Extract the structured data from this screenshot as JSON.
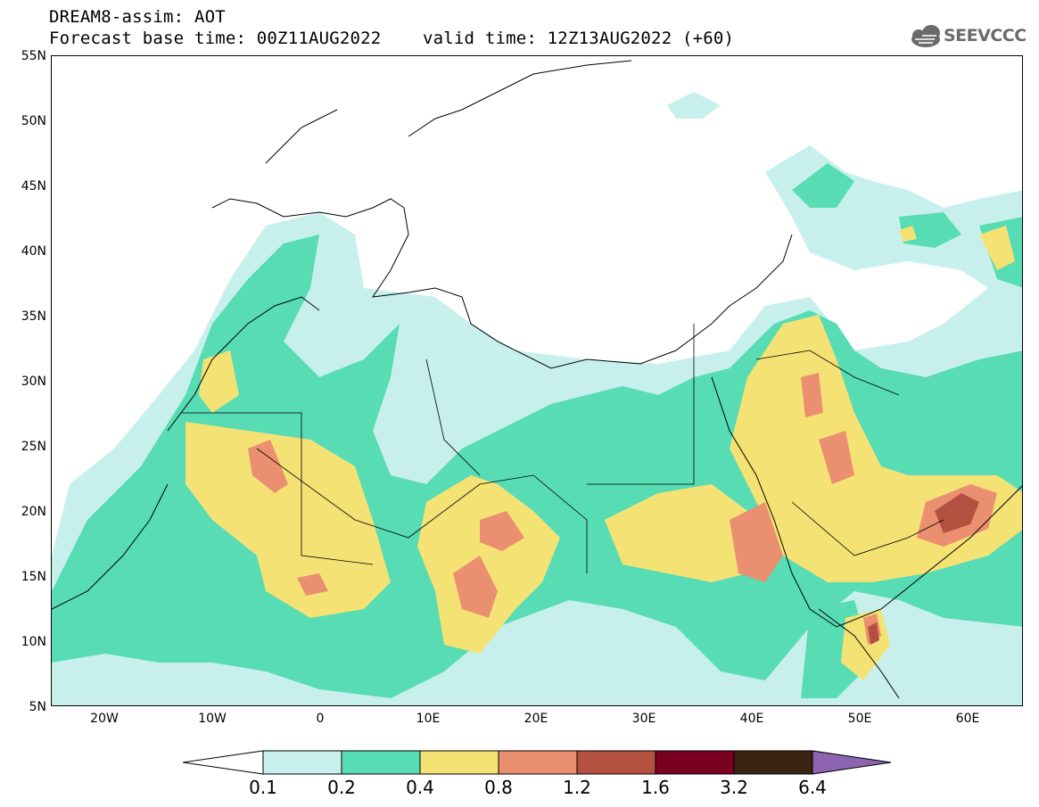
{
  "header": {
    "title_line1": "DREAM8-assim: AOT",
    "title_line2": "Forecast base time: 00Z11AUG2022    valid time: 12Z13AUG2022 (+60)",
    "logo_text": "SEEVCCC"
  },
  "axes": {
    "lat_labels": [
      "55N",
      "50N",
      "45N",
      "40N",
      "35N",
      "30N",
      "25N",
      "20N",
      "15N",
      "10N",
      "5N"
    ],
    "lon_labels": [
      "20W",
      "10W",
      "0",
      "10E",
      "20E",
      "30E",
      "40E",
      "50E",
      "60E"
    ]
  },
  "colorbar": {
    "labels": [
      "0.1",
      "0.2",
      "0.4",
      "0.8",
      "1.2",
      "1.6",
      "3.2",
      "6.4"
    ],
    "colors": [
      "#ffffff",
      "#c7f0ec",
      "#57dcb4",
      "#f5e275",
      "#ea9070",
      "#b45040",
      "#7a0021",
      "#3b2412",
      "#8d64b0"
    ]
  },
  "colors": {
    "level_0_1": "#c7f0ec",
    "level_0_2": "#57dcb4",
    "level_0_4": "#f5e275",
    "level_0_8": "#ea9070",
    "level_1_2": "#b45040",
    "level_1_6": "#7a0021",
    "level_3_2": "#3b2412",
    "level_6_4": "#8d64b0"
  }
}
